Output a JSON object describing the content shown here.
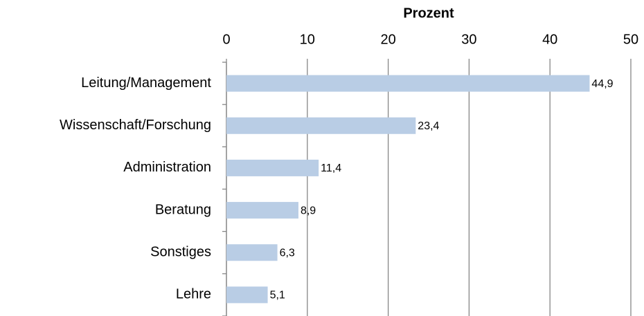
{
  "chart_data": {
    "type": "bar",
    "orientation": "horizontal",
    "x_axis_label": "Prozent",
    "categories": [
      "Leitung/Management",
      "Wissenschaft/Forschung",
      "Administration",
      "Beratung",
      "Sonstiges",
      "Lehre"
    ],
    "values": [
      44.9,
      23.4,
      11.4,
      8.9,
      6.3,
      5.1
    ],
    "value_labels": [
      "44,9",
      "23,4",
      "11,4",
      "8,9",
      "6,3",
      "5,1"
    ],
    "color": "#b9cde5",
    "xlim": [
      0,
      50
    ],
    "xticks": [
      0,
      10,
      20,
      30,
      40,
      50
    ],
    "grid": true
  }
}
